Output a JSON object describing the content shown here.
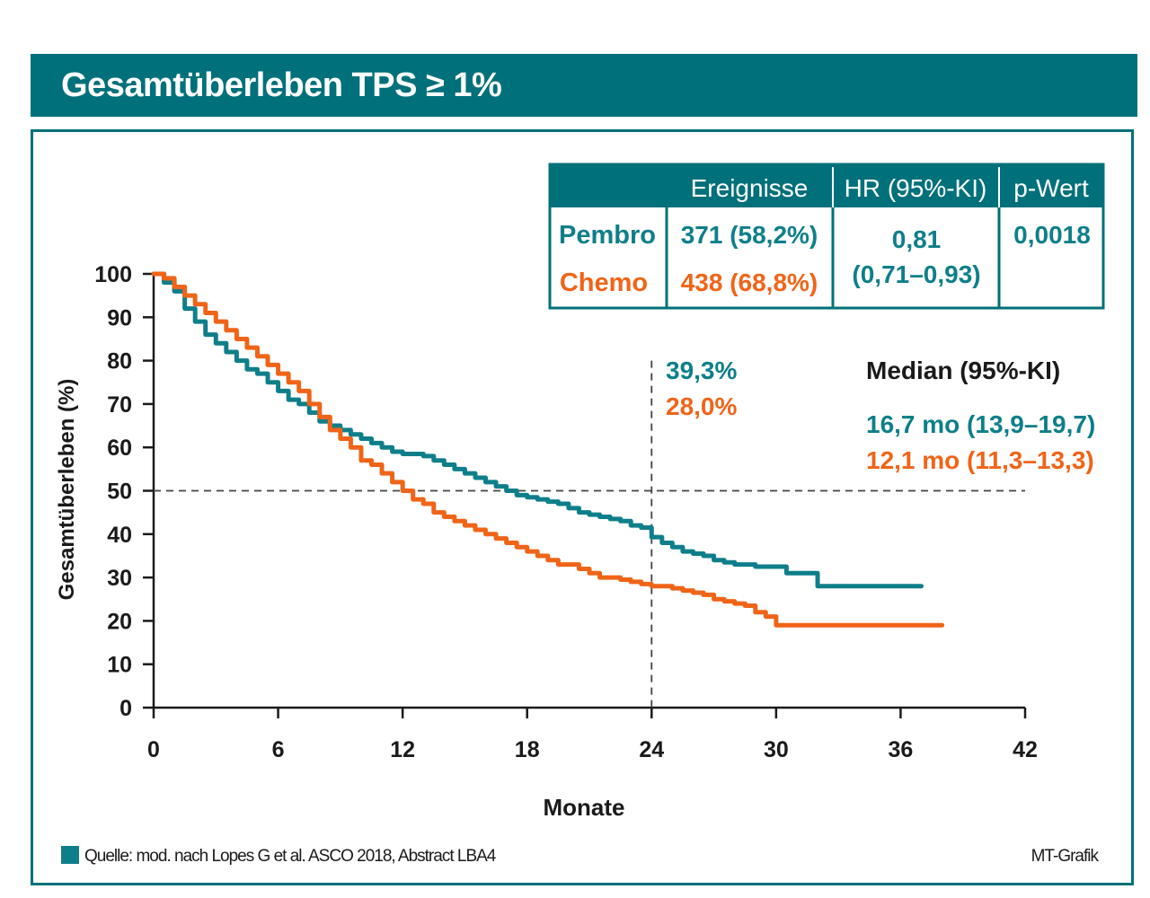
{
  "title": "Gesamtüberleben TPS ≥ 1%",
  "colors": {
    "pembro": "#0e7f8a",
    "chemo": "#f06418",
    "frame": "#00707a"
  },
  "table": {
    "headers": [
      "",
      "Ereignisse",
      "HR (95%-KI)",
      "p-Wert"
    ],
    "pembro_label": "Pembro",
    "chemo_label": "Chemo",
    "pembro_events": "371 (58,2%)",
    "chemo_events": "438 (68,8%)",
    "hr_value": "0,81",
    "hr_ci": "(0,71–0,93)",
    "p_value": "0,0018"
  },
  "annotations": {
    "pembro_24": "39,3%",
    "chemo_24": "28,0%",
    "median_title": "Median (95%-KI)",
    "pembro_median": "16,7 mo (13,9–19,7)",
    "chemo_median": "12,1 mo (11,3–13,3)"
  },
  "footer": {
    "source": "Quelle: mod. nach Lopes G et al. ASCO 2018, Abstract LBA4",
    "credit": "MT-Grafik"
  },
  "chart_data": {
    "type": "line",
    "xlabel": "Monate",
    "ylabel": "Gesamtüberleben (%)",
    "xlim": [
      0,
      42
    ],
    "ylim": [
      0,
      100
    ],
    "xticks": [
      0,
      6,
      12,
      18,
      24,
      30,
      36,
      42
    ],
    "yticks": [
      0,
      10,
      20,
      30,
      40,
      50,
      60,
      70,
      80,
      90,
      100
    ],
    "reference_lines": {
      "y": 50,
      "x": 24
    },
    "series": [
      {
        "name": "Pembro",
        "x": [
          0,
          0.5,
          1,
          1.5,
          2,
          2.5,
          3,
          3.5,
          4,
          4.5,
          5,
          5.5,
          6,
          6.5,
          7,
          7.5,
          8,
          8.5,
          9,
          9.5,
          10,
          10.5,
          11,
          11.5,
          12,
          12.5,
          13,
          13.5,
          14,
          14.5,
          15,
          15.5,
          16,
          16.5,
          17,
          17.5,
          18,
          18.5,
          19,
          19.5,
          20,
          20.5,
          21,
          21.5,
          22,
          22.5,
          23,
          23.5,
          24,
          24.5,
          25,
          25.5,
          26,
          26.5,
          27,
          27.5,
          28,
          28.5,
          29,
          29.5,
          30,
          30.5,
          31,
          31.5,
          32,
          32.5,
          33,
          34,
          35,
          36,
          37
        ],
        "y": [
          100,
          98,
          96,
          92,
          89,
          86,
          84,
          82,
          80,
          78,
          77,
          75,
          73,
          71,
          70,
          68,
          66,
          65,
          64,
          63,
          62,
          61,
          60,
          59,
          58.5,
          58.5,
          58,
          57,
          56,
          55,
          54,
          53,
          52,
          51,
          50,
          49,
          48.5,
          48,
          47.5,
          47,
          46,
          45,
          44.5,
          44,
          43.5,
          43,
          42,
          41.5,
          39.3,
          38,
          37,
          36,
          35.5,
          35,
          34,
          33.5,
          33,
          33,
          32.5,
          32.5,
          32.5,
          31,
          31,
          31,
          28,
          28,
          28,
          28,
          28,
          28,
          28
        ]
      },
      {
        "name": "Chemo",
        "x": [
          0,
          0.5,
          1,
          1.5,
          2,
          2.5,
          3,
          3.5,
          4,
          4.5,
          5,
          5.5,
          6,
          6.5,
          7,
          7.5,
          8,
          8.5,
          9,
          9.5,
          10,
          10.5,
          11,
          11.5,
          12,
          12.5,
          13,
          13.5,
          14,
          14.5,
          15,
          15.5,
          16,
          16.5,
          17,
          17.5,
          18,
          18.5,
          19,
          19.5,
          20,
          20.5,
          21,
          21.5,
          22,
          22.5,
          23,
          23.5,
          24,
          24.5,
          25,
          25.5,
          26,
          26.5,
          27,
          27.5,
          28,
          28.5,
          29,
          29.5,
          30,
          31,
          32,
          33,
          34,
          35,
          36,
          37,
          38
        ],
        "y": [
          100,
          99,
          97,
          95,
          93,
          91,
          89,
          87,
          85,
          83,
          81,
          79,
          77,
          75,
          73,
          70,
          67,
          64,
          62,
          60,
          57,
          56,
          54,
          52,
          50,
          48,
          47,
          45,
          44,
          43,
          42,
          41,
          40,
          39,
          38,
          37,
          36,
          35,
          34,
          33,
          33,
          32,
          31,
          30,
          30,
          29.5,
          29,
          28.5,
          28,
          28,
          27.5,
          27,
          26.5,
          26,
          25,
          24.5,
          24,
          23.5,
          22,
          21,
          19,
          19,
          19,
          19,
          19,
          19,
          19,
          19,
          19
        ]
      }
    ]
  }
}
